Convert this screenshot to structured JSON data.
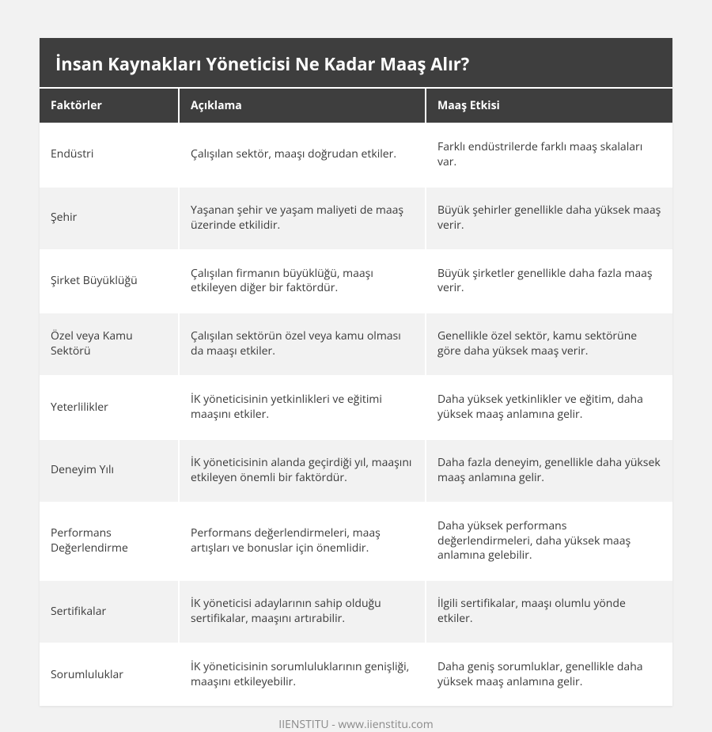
{
  "title": "İnsan Kaynakları Yöneticisi Ne Kadar Maaş Alır?",
  "columns": [
    "Faktörler",
    "Açıklama",
    "Maaş Etkisi"
  ],
  "rows": [
    {
      "factor": "Endüstri",
      "desc": "Çalışılan sektör, maaşı doğrudan etkiler.",
      "effect": "Farklı endüstrilerde farklı maaş skalaları var."
    },
    {
      "factor": "Şehir",
      "desc": "Yaşanan şehir ve yaşam maliyeti de maaş üzerinde etkilidir.",
      "effect": "Büyük şehirler genellikle daha yüksek maaş verir."
    },
    {
      "factor": "Şirket Büyüklüğü",
      "desc": "Çalışılan firmanın büyüklüğü, maaşı etkileyen diğer bir faktördür.",
      "effect": "Büyük şirketler genellikle daha fazla maaş verir."
    },
    {
      "factor": "Özel veya Kamu Sektörü",
      "desc": "Çalışılan sektörün özel veya kamu olması da maaşı etkiler.",
      "effect": "Genellikle özel sektör, kamu sektörüne göre daha yüksek maaş verir."
    },
    {
      "factor": "Yeterlilikler",
      "desc": "İK yöneticisinin yetkinlikleri ve eğitimi maaşını etkiler.",
      "effect": "Daha yüksek yetkinlikler ve eğitim, daha yüksek maaş anlamına gelir."
    },
    {
      "factor": "Deneyim Yılı",
      "desc": "İK yöneticisinin alanda geçirdiği yıl, maaşını etkileyen önemli bir faktördür.",
      "effect": "Daha fazla deneyim, genellikle daha yüksek maaş anlamına gelir."
    },
    {
      "factor": "Performans Değerlendirme",
      "desc": "Performans değerlendirmeleri, maaş artışları ve bonuslar için önemlidir.",
      "effect": "Daha yüksek performans değerlendirmeleri, daha yüksek maaş anlamına gelebilir."
    },
    {
      "factor": "Sertifikalar",
      "desc": "İK yöneticisi adaylarının sahip olduğu sertifikalar, maaşını artırabilir.",
      "effect": "İlgili sertifikalar, maaşı olumlu yönde etkiler."
    },
    {
      "factor": "Sorumluluklar",
      "desc": "İK yöneticisinin sorumluluklarının genişliği, maaşını etkileyebilir.",
      "effect": "Daha geniş sorumluklar, genellikle daha yüksek maaş anlamına gelir."
    }
  ],
  "footer": "IIENSTITU - www.iienstitu.com",
  "style": {
    "header_bg": "#3e3e3e",
    "header_text": "#ffffff",
    "row_alt_bg": "#f2f2f2",
    "row_bg": "#ffffff",
    "page_bg": "#f2f2f2",
    "title_fontsize": 22,
    "cell_fontsize": 14,
    "footer_color": "#8a8a8a"
  }
}
